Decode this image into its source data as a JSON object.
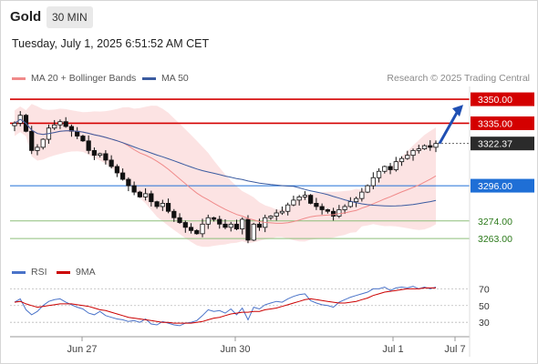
{
  "header": {
    "instrument": "Gold",
    "timeframe": "30 MIN",
    "datetime": "Tuesday, July 1, 2025 6:51:52 AM CET"
  },
  "legend": {
    "ma20_label": "MA 20 + Bollinger Bands",
    "ma50_label": "MA 50",
    "copyright": "Research © 2025 Trading Central",
    "rsi_label": "RSI",
    "ma9_label": "9MA"
  },
  "colors": {
    "up_candle": "#ffffff",
    "down_candle": "#111111",
    "bollinger_fill": "#fbd9d9",
    "ma20": "#f08a8a",
    "ma50": "#3a5ba0",
    "resistance": "#d40000",
    "support": "#8dbf7a",
    "pivot": "#1f6fd6",
    "price_tag": "#2b2b2b",
    "rsi": "#4a73c9",
    "rsi_ma9": "#cc0000"
  },
  "chart_data": [
    {
      "type": "candlestick",
      "title": "Gold 30 MIN",
      "x_tick_labels": [
        "Jun 27",
        "Jun 30",
        "Jul 1",
        "Jul 7"
      ],
      "ylim": [
        3250,
        3358
      ],
      "levels": [
        {
          "label": "3350.00",
          "value": 3350,
          "kind": "resistance"
        },
        {
          "label": "3335.00",
          "value": 3335,
          "kind": "resistance"
        },
        {
          "label": "3322.37",
          "value": 3322.37,
          "kind": "last"
        },
        {
          "label": "3296.00",
          "value": 3296,
          "kind": "pivot"
        },
        {
          "label": "3274.00",
          "value": 3274,
          "kind": "support"
        },
        {
          "label": "3263.00",
          "value": 3263,
          "kind": "support"
        }
      ],
      "close_series": [
        3335,
        3340,
        3330,
        3318,
        3320,
        3325,
        3332,
        3334,
        3336,
        3333,
        3330,
        3327,
        3324,
        3318,
        3315,
        3316,
        3312,
        3308,
        3304,
        3300,
        3296,
        3292,
        3289,
        3291,
        3286,
        3283,
        3285,
        3280,
        3276,
        3273,
        3270,
        3268,
        3266,
        3272,
        3276,
        3275,
        3272,
        3270,
        3272,
        3269,
        3275,
        3262,
        3272,
        3270,
        3276,
        3277,
        3279,
        3280,
        3284,
        3287,
        3289,
        3290,
        3285,
        3283,
        3281,
        3280,
        3277,
        3281,
        3283,
        3286,
        3288,
        3292,
        3296,
        3301,
        3305,
        3308,
        3306,
        3311,
        3313,
        3315,
        3318,
        3319,
        3321,
        3320,
        3322.37
      ],
      "projection": {
        "from": 3322.37,
        "to": 3350
      }
    },
    {
      "type": "line",
      "title": "RSI",
      "y_tick_labels": [
        "70",
        "50",
        "30"
      ],
      "ylim": [
        15,
        78
      ],
      "series": [
        {
          "name": "RSI",
          "values": [
            54,
            58,
            45,
            39,
            43,
            50,
            55,
            57,
            58,
            54,
            51,
            48,
            46,
            41,
            39,
            43,
            38,
            36,
            34,
            33,
            31,
            32,
            30,
            34,
            28,
            27,
            31,
            29,
            27,
            26,
            29,
            30,
            32,
            38,
            45,
            43,
            44,
            41,
            46,
            39,
            47,
            33,
            48,
            46,
            51,
            53,
            55,
            54,
            58,
            61,
            63,
            64,
            56,
            53,
            51,
            50,
            48,
            54,
            57,
            60,
            62,
            64,
            66,
            70,
            70,
            72,
            68,
            71,
            72,
            71,
            73,
            70,
            72,
            70,
            72
          ]
        },
        {
          "name": "9MA",
          "values": [
            54,
            55,
            52,
            50,
            48,
            49,
            50,
            51,
            52,
            52,
            52,
            51,
            50,
            49,
            47,
            45,
            44,
            42,
            40,
            38,
            36,
            35,
            34,
            33,
            32,
            31,
            30,
            30,
            29,
            29,
            29,
            29,
            30,
            31,
            33,
            35,
            36,
            38,
            40,
            41,
            42,
            42,
            43,
            43,
            45,
            46,
            47,
            49,
            51,
            53,
            55,
            57,
            58,
            57,
            56,
            55,
            54,
            53,
            53,
            54,
            55,
            57,
            59,
            62,
            64,
            66,
            67,
            68,
            69,
            70,
            70,
            70,
            71,
            71,
            71
          ]
        }
      ]
    }
  ]
}
